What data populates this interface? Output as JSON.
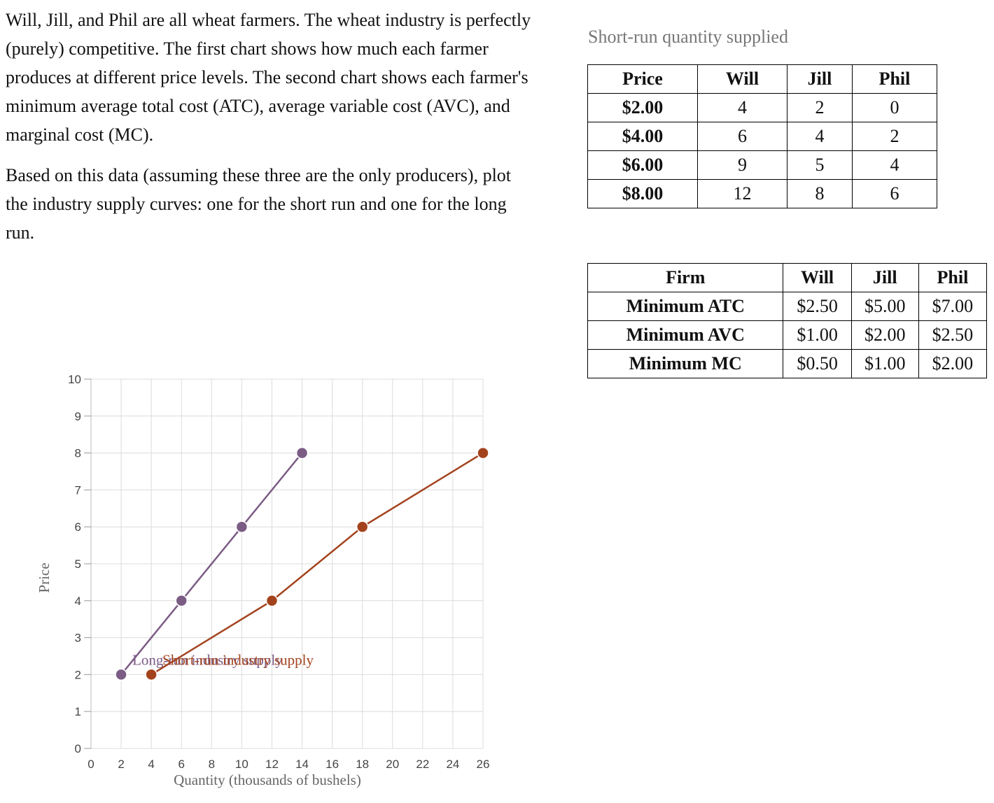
{
  "prompt": {
    "paragraph1": "Will, Jill, and Phil are all wheat farmers. The wheat industry is perfectly (purely) competitive. The first chart shows how much each farmer produces at different price levels. The second chart shows each farmer's minimum average total cost (ATC), average variable cost (AVC), and marginal cost (MC).",
    "paragraph2": "Based on this data (assuming these three are the only producers), plot the industry supply curves: one for the short run and one for the long run."
  },
  "quantity_table": {
    "caption": "Short-run quantity supplied",
    "headers": [
      "Price",
      "Will",
      "Jill",
      "Phil"
    ],
    "rows": [
      [
        "$2.00",
        "4",
        "2",
        "0"
      ],
      [
        "$4.00",
        "6",
        "4",
        "2"
      ],
      [
        "$6.00",
        "9",
        "5",
        "4"
      ],
      [
        "$8.00",
        "12",
        "8",
        "6"
      ]
    ]
  },
  "cost_table": {
    "headers": [
      "Firm",
      "Will",
      "Jill",
      "Phil"
    ],
    "rows": [
      [
        "Minimum ATC",
        "$2.50",
        "$5.00",
        "$7.00"
      ],
      [
        "Minimum AVC",
        "$1.00",
        "$2.00",
        "$2.50"
      ],
      [
        "Minimum MC",
        "$0.50",
        "$1.00",
        "$2.00"
      ]
    ]
  },
  "chart_data": {
    "type": "line",
    "xlabel": "Quantity (thousands of bushels)",
    "ylabel": "Price",
    "xlim": [
      0,
      26
    ],
    "ylim": [
      0,
      10
    ],
    "xticks": [
      0,
      2,
      4,
      6,
      8,
      10,
      12,
      14,
      16,
      18,
      20,
      22,
      24,
      26
    ],
    "yticks": [
      0,
      1,
      2,
      3,
      4,
      5,
      6,
      7,
      8,
      9,
      10
    ],
    "grid": true,
    "series": [
      {
        "name": "Long-run industry supply",
        "color": "#7b5c85",
        "points": [
          [
            2,
            2
          ],
          [
            6,
            4
          ],
          [
            10,
            6
          ],
          [
            14,
            8
          ]
        ]
      },
      {
        "name": "Short-run industry supply",
        "color": "#a3431e",
        "points": [
          [
            4,
            2
          ],
          [
            12,
            4
          ],
          [
            18,
            6
          ],
          [
            26,
            8
          ]
        ]
      }
    ]
  }
}
